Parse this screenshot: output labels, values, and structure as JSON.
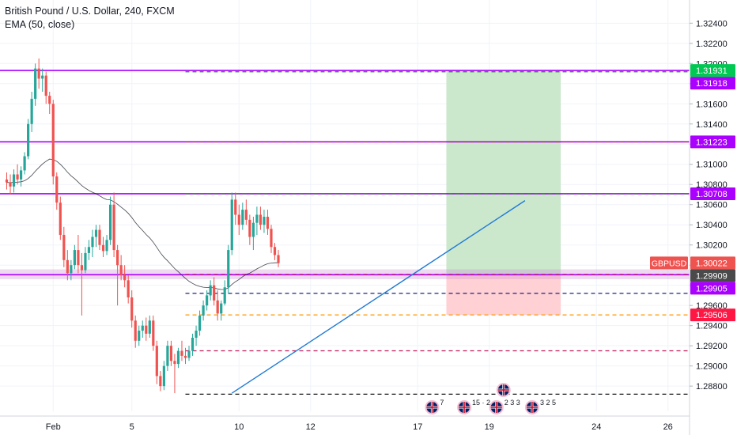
{
  "header": {
    "title": "British Pound / U.S. Dollar, 240, FXCM",
    "indicator": "EMA (50, close)"
  },
  "colors": {
    "up": "#26a69a",
    "down": "#ef5350",
    "ema": "#131722",
    "trendline": "#1f7ad6",
    "resistance": "#9c27b0",
    "target_zone": "#c8e6c9",
    "stop_zone": "#ffcdd2",
    "axis_text": "#131722",
    "grid": "#f0f3fa"
  },
  "chart_data": {
    "type": "candlestick",
    "symbol": "GBPUSD",
    "timeframe": "240",
    "x_tick_labels": [
      {
        "label": "Feb",
        "bar": 13
      },
      {
        "label": "5",
        "bar": 35
      },
      {
        "label": "10",
        "bar": 65
      },
      {
        "label": "12",
        "bar": 85
      },
      {
        "label": "17",
        "bar": 115
      },
      {
        "label": "19",
        "bar": 135
      },
      {
        "label": "24",
        "bar": 165
      },
      {
        "label": "26",
        "bar": 185
      }
    ],
    "y_tick_labels": [
      "1.32400",
      "1.32200",
      "1.32000",
      "1.31800",
      "1.31600",
      "1.31400",
      "1.31200",
      "1.31000",
      "1.30800",
      "1.30600",
      "1.30400",
      "1.30200",
      "1.30000",
      "1.29800",
      "1.29600",
      "1.29400",
      "1.29200",
      "1.29000",
      "1.28800"
    ],
    "ylim": [
      1.2855,
      1.3263
    ],
    "price_labels": [
      {
        "text": "1.31931",
        "value": 1.31931,
        "color": "#00c853",
        "text_color": "#ffffff"
      },
      {
        "text": "1.31918",
        "value": 1.31918,
        "color": "#aa00ff",
        "text_color": "#ffffff"
      },
      {
        "text": "1.31223",
        "value": 1.31223,
        "color": "#aa00ff",
        "text_color": "#ffffff"
      },
      {
        "text": "1.30708",
        "value": 1.30708,
        "color": "#aa00ff",
        "text_color": "#ffffff"
      },
      {
        "text": "1.30022",
        "value": 1.30022,
        "color": "#ef5350",
        "text_color": "#ffffff",
        "tag": "GBPUSD"
      },
      {
        "text": "1.29909",
        "value": 1.29909,
        "color": "#4a4a4a",
        "text_color": "#ffffff"
      },
      {
        "text": "1.29905",
        "value": 1.29905,
        "color": "#aa00ff",
        "text_color": "#ffffff"
      },
      {
        "text": "1.29506",
        "value": 1.29506,
        "color": "#ff1744",
        "text_color": "#ffffff"
      }
    ],
    "horizontal_lines": [
      {
        "value": 1.31931,
        "style": "solid",
        "color": "#aa00ff",
        "x_start_bar": 0
      },
      {
        "value": 1.31223,
        "style": "solid",
        "color": "#aa00ff",
        "x_start_bar": 0
      },
      {
        "value": 1.30708,
        "style": "solid",
        "color": "#aa00ff",
        "x_start_bar": 0
      },
      {
        "value": 1.29905,
        "style": "solid",
        "color": "#aa00ff",
        "x_start_bar": 0
      },
      {
        "value": 1.31918,
        "style": "dashed",
        "color": "#2e7d32",
        "x_start_bar": 50
      },
      {
        "value": 1.31223,
        "style": "dashed",
        "color": "#c2185b",
        "x_start_bar": 50
      },
      {
        "value": 1.30708,
        "style": "dashed",
        "color": "#2e7d32",
        "x_start_bar": 50
      },
      {
        "value": 1.29909,
        "style": "dashed",
        "color": "#c2185b",
        "x_start_bar": 50
      },
      {
        "value": 1.2972,
        "style": "dashed",
        "color": "#1a237e",
        "x_start_bar": 50
      },
      {
        "value": 1.29506,
        "style": "dashed",
        "color": "#ff9800",
        "x_start_bar": 50
      },
      {
        "value": 1.2915,
        "style": "dashed",
        "color": "#c2185b",
        "x_start_bar": 50
      },
      {
        "value": 1.2872,
        "style": "dashed",
        "color": "#000000",
        "x_start_bar": 50
      }
    ],
    "support_band": {
      "low": 1.29885,
      "high": 1.29935
    },
    "position_box": {
      "start_bar": 123,
      "end_bar": 155,
      "entry": 1.29909,
      "target": 1.31931,
      "stop": 1.29506
    },
    "trendline": {
      "from": {
        "bar": 63,
        "price": 1.2873
      },
      "to": {
        "bar": 145,
        "price": 1.3064
      }
    },
    "event_icons": [
      {
        "bar": 119,
        "count": "7",
        "row": 0
      },
      {
        "bar": 128,
        "count": "15 · 2",
        "row": 0
      },
      {
        "bar": 137,
        "count": "2 3 3",
        "row": 0
      },
      {
        "bar": 147,
        "count": "3 2 5",
        "row": 0
      },
      {
        "bar": 139,
        "count": "",
        "row": 1
      }
    ],
    "ohlc": [
      [
        1.3085,
        1.3092,
        1.3075,
        1.3082
      ],
      [
        1.3082,
        1.309,
        1.307,
        1.3078
      ],
      [
        1.3078,
        1.3095,
        1.3072,
        1.309
      ],
      [
        1.309,
        1.31,
        1.308,
        1.3085
      ],
      [
        1.3085,
        1.3098,
        1.3078,
        1.3094
      ],
      [
        1.3094,
        1.3112,
        1.309,
        1.3108
      ],
      [
        1.3108,
        1.3145,
        1.3105,
        1.314
      ],
      [
        1.314,
        1.3172,
        1.3132,
        1.3165
      ],
      [
        1.3165,
        1.32,
        1.3158,
        1.3195
      ],
      [
        1.3195,
        1.3205,
        1.3175,
        1.3185
      ],
      [
        1.3185,
        1.3195,
        1.3172,
        1.3188
      ],
      [
        1.3188,
        1.3192,
        1.316,
        1.3168
      ],
      [
        1.3168,
        1.3172,
        1.315,
        1.316
      ],
      [
        1.316,
        1.3164,
        1.308,
        1.3088
      ],
      [
        1.3088,
        1.3092,
        1.3055,
        1.3062
      ],
      [
        1.3062,
        1.3068,
        1.3025,
        1.303
      ],
      [
        1.303,
        1.3038,
        1.2998,
        1.3005
      ],
      [
        1.3005,
        1.3015,
        1.2985,
        1.2992
      ],
      [
        1.2992,
        1.3005,
        1.2985,
        1.3
      ],
      [
        1.3,
        1.302,
        1.2996,
        1.3015
      ],
      [
        1.3015,
        1.303,
        1.2992,
        1.3
      ],
      [
        1.3,
        1.3012,
        1.295,
        1.2995
      ],
      [
        1.2995,
        1.3018,
        1.2992,
        1.3012
      ],
      [
        1.3012,
        1.3025,
        1.3005,
        1.3018
      ],
      [
        1.3018,
        1.3035,
        1.3008,
        1.3028
      ],
      [
        1.3028,
        1.304,
        1.3018,
        1.3035
      ],
      [
        1.3035,
        1.304,
        1.3015,
        1.302
      ],
      [
        1.302,
        1.3028,
        1.3008,
        1.3014
      ],
      [
        1.3014,
        1.303,
        1.301,
        1.3025
      ],
      [
        1.3025,
        1.3068,
        1.302,
        1.306
      ],
      [
        1.306,
        1.3072,
        1.3008,
        1.3015
      ],
      [
        1.3015,
        1.302,
        1.296,
        1.3
      ],
      [
        1.3,
        1.301,
        1.2985,
        1.299
      ],
      [
        1.299,
        1.3,
        1.2978,
        1.2985
      ],
      [
        1.2985,
        1.299,
        1.2962,
        1.2968
      ],
      [
        1.2968,
        1.2975,
        1.2938,
        1.2945
      ],
      [
        1.2945,
        1.295,
        1.2918,
        1.2925
      ],
      [
        1.2925,
        1.294,
        1.292,
        1.2935
      ],
      [
        1.2935,
        1.2945,
        1.2928,
        1.294
      ],
      [
        1.294,
        1.2948,
        1.2925,
        1.2932
      ],
      [
        1.2932,
        1.295,
        1.2928,
        1.2945
      ],
      [
        1.2945,
        1.295,
        1.2915,
        1.292
      ],
      [
        1.292,
        1.2925,
        1.2882,
        1.289
      ],
      [
        1.289,
        1.2895,
        1.2875,
        1.288
      ],
      [
        1.288,
        1.2905,
        1.2876,
        1.29
      ],
      [
        1.29,
        1.2925,
        1.2895,
        1.292
      ],
      [
        1.292,
        1.2925,
        1.29,
        1.2905
      ],
      [
        1.2905,
        1.2912,
        1.2873,
        1.2902
      ],
      [
        1.2902,
        1.2918,
        1.2898,
        1.2915
      ],
      [
        1.2915,
        1.2925,
        1.2905,
        1.291
      ],
      [
        1.291,
        1.2918,
        1.2902,
        1.2908
      ],
      [
        1.2908,
        1.292,
        1.2905,
        1.2915
      ],
      [
        1.2915,
        1.2932,
        1.291,
        1.2928
      ],
      [
        1.2928,
        1.294,
        1.292,
        1.2935
      ],
      [
        1.2935,
        1.2955,
        1.293,
        1.295
      ],
      [
        1.295,
        1.2965,
        1.2945,
        1.296
      ],
      [
        1.296,
        1.2975,
        1.2955,
        1.297
      ],
      [
        1.297,
        1.2985,
        1.2965,
        1.298
      ],
      [
        1.298,
        1.2988,
        1.296,
        1.2965
      ],
      [
        1.2965,
        1.2975,
        1.2945,
        1.2952
      ],
      [
        1.2952,
        1.2965,
        1.2945,
        1.2962
      ],
      [
        1.2962,
        1.2985,
        1.296,
        1.2978
      ],
      [
        1.2978,
        1.302,
        1.2972,
        1.3015
      ],
      [
        1.3015,
        1.3072,
        1.301,
        1.3065
      ],
      [
        1.3065,
        1.3072,
        1.304,
        1.305
      ],
      [
        1.305,
        1.306,
        1.303,
        1.304
      ],
      [
        1.304,
        1.3062,
        1.3035,
        1.3055
      ],
      [
        1.3055,
        1.3065,
        1.304,
        1.3045
      ],
      [
        1.3045,
        1.305,
        1.302,
        1.3028
      ],
      [
        1.3028,
        1.3048,
        1.3015,
        1.3042
      ],
      [
        1.3042,
        1.3058,
        1.303,
        1.305
      ],
      [
        1.305,
        1.3058,
        1.3035,
        1.304
      ],
      [
        1.304,
        1.3055,
        1.3032,
        1.3048
      ],
      [
        1.3048,
        1.3055,
        1.303,
        1.3036
      ],
      [
        1.3036,
        1.304,
        1.3012,
        1.3018
      ],
      [
        1.3018,
        1.3022,
        1.3005,
        1.301
      ],
      [
        1.301,
        1.3015,
        1.2998,
        1.3002
      ]
    ]
  }
}
